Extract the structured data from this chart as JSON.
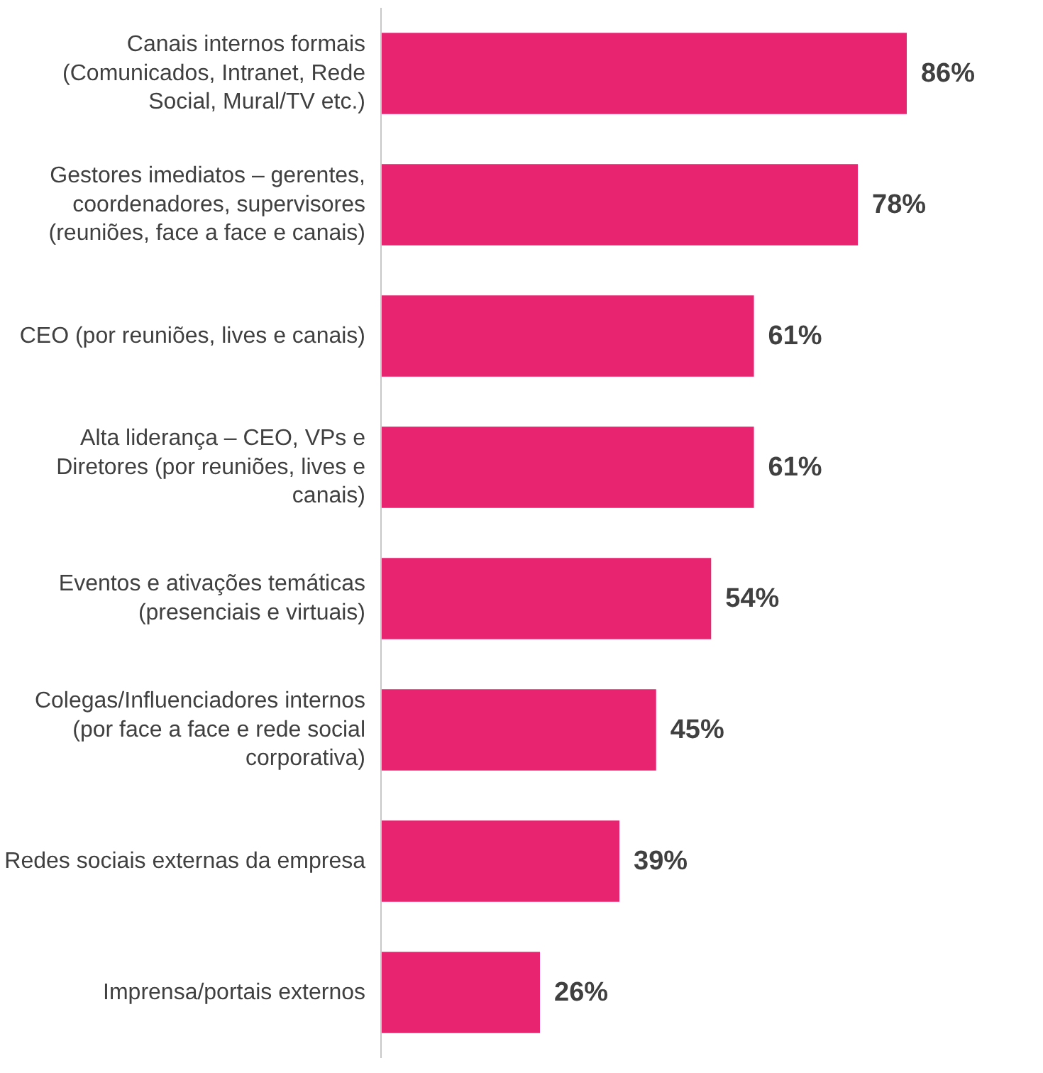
{
  "chart_data": {
    "type": "bar",
    "orientation": "horizontal",
    "categories": [
      "Canais internos formais\n(Comunicados, Intranet, Rede\nSocial, Mural/TV etc.)",
      "Gestores imediatos – gerentes,\ncoordenadores, supervisores\n(reuniões, face a face e canais)",
      "CEO (por reuniões, lives e canais)",
      "Alta liderança – CEO, VPs e\nDiretores (por reuniões, lives e\ncanais)",
      "Eventos e ativações temáticas\n(presenciais e virtuais)",
      "Colegas/Influenciadores internos\n(por face a face e rede social\ncorporativa)",
      "Redes sociais externas da empresa",
      "Imprensa/portais externos"
    ],
    "values": [
      86,
      78,
      61,
      61,
      54,
      45,
      39,
      26
    ],
    "color": "#e8236f",
    "data_labels": true,
    "value_labels": [
      "86%",
      "78%",
      "61%",
      "61%",
      "54%",
      "45%",
      "39%",
      "26%"
    ],
    "grid": false
  }
}
